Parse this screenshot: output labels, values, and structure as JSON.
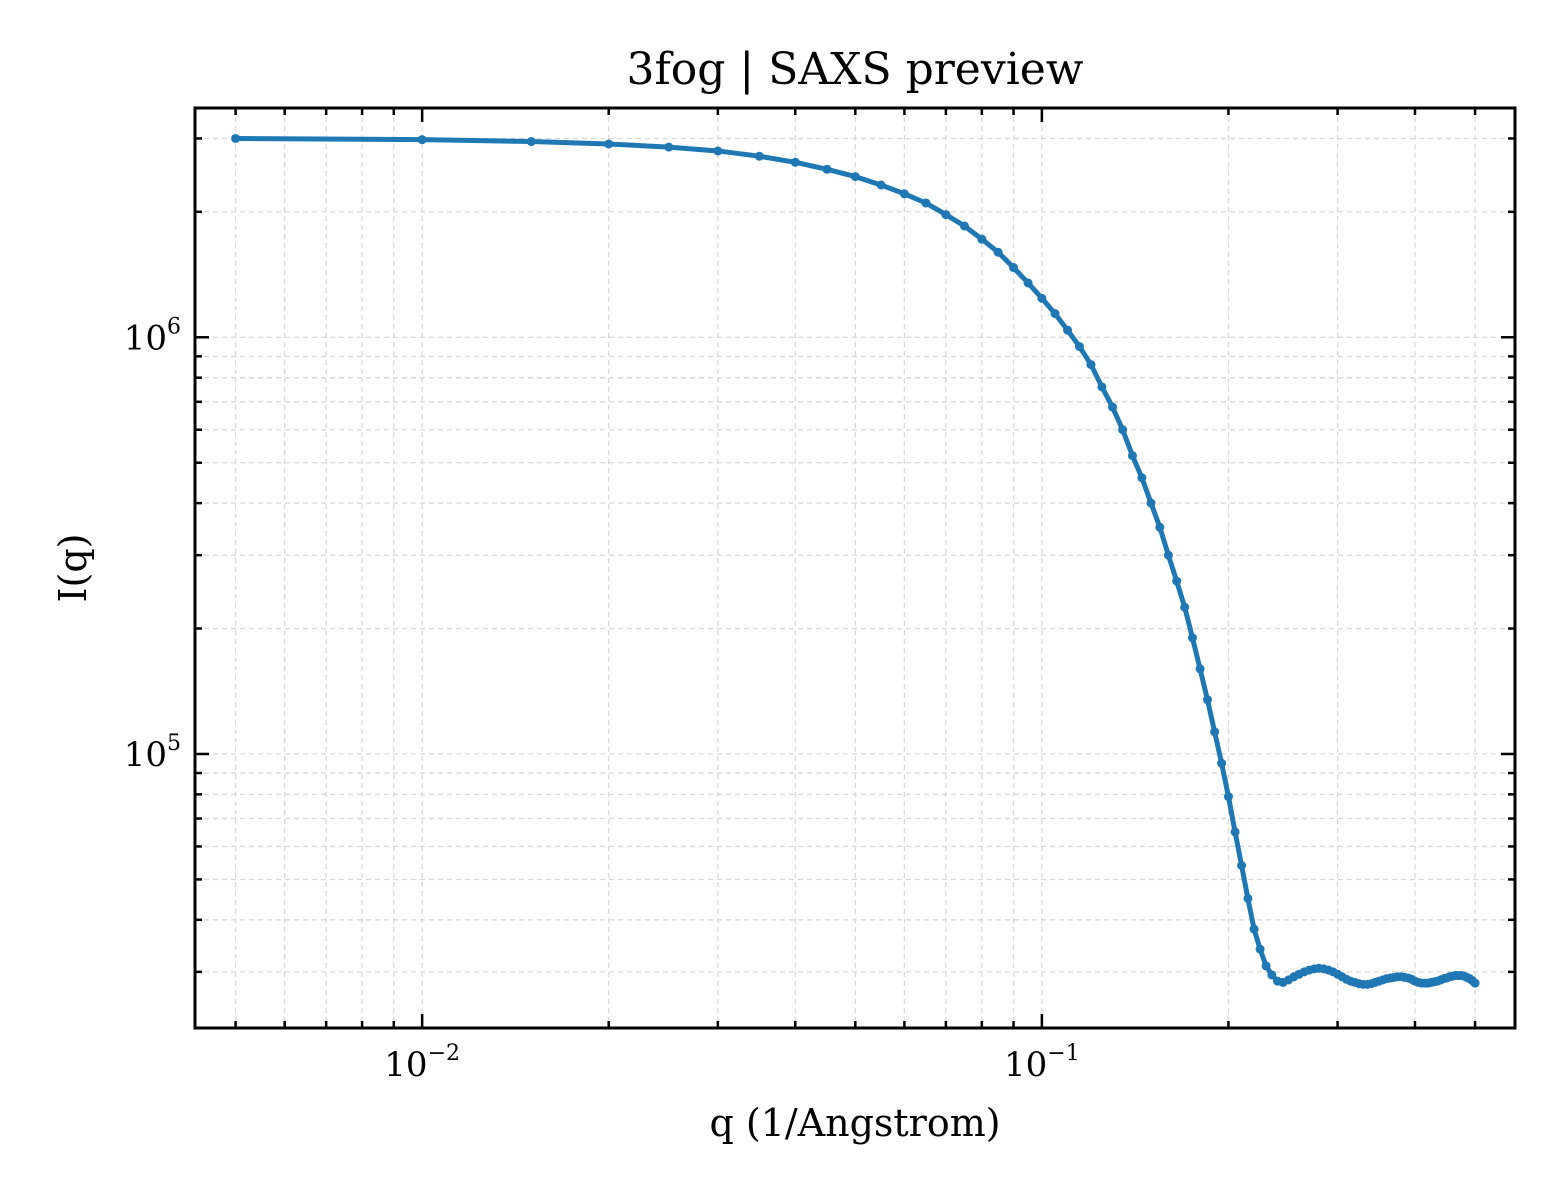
{
  "chart_data": {
    "type": "line",
    "title": "3fog | SAXS preview",
    "xlabel": "q (1/Angstrom)",
    "ylabel": "I(q)",
    "x_scale": "log",
    "y_scale": "log",
    "xlim": [
      0.0043,
      0.58
    ],
    "ylim": [
      22000,
      3550000
    ],
    "grid": true,
    "x_major_ticks": [
      {
        "value": 0.01,
        "base": "10",
        "exp": "−2"
      },
      {
        "value": 0.1,
        "base": "10",
        "exp": "−1"
      }
    ],
    "y_major_ticks": [
      {
        "value": 100000,
        "base": "10",
        "exp": "5"
      },
      {
        "value": 1000000,
        "base": "10",
        "exp": "6"
      }
    ],
    "colors": {
      "series": "#1f77b4",
      "grid": "#d9d9d9",
      "axes": "#000000"
    },
    "series": [
      {
        "x": [
          0.005,
          0.01,
          0.015,
          0.02,
          0.025,
          0.03,
          0.035,
          0.04,
          0.045,
          0.05,
          0.055,
          0.06,
          0.065,
          0.07,
          0.075,
          0.08,
          0.085,
          0.09,
          0.095,
          0.1,
          0.105,
          0.11,
          0.115,
          0.12,
          0.125,
          0.13,
          0.135,
          0.14,
          0.145,
          0.15,
          0.155,
          0.16,
          0.165,
          0.17,
          0.175,
          0.18,
          0.185,
          0.19,
          0.195,
          0.2,
          0.205,
          0.21,
          0.215,
          0.22,
          0.225,
          0.23,
          0.235,
          0.24,
          0.245,
          0.25,
          0.255,
          0.26,
          0.265,
          0.27,
          0.275,
          0.28,
          0.285,
          0.29,
          0.295,
          0.3,
          0.305,
          0.31,
          0.315,
          0.32,
          0.325,
          0.33,
          0.335,
          0.34,
          0.345,
          0.35,
          0.355,
          0.36,
          0.365,
          0.37,
          0.375,
          0.38,
          0.385,
          0.39,
          0.395,
          0.4,
          0.405,
          0.41,
          0.415,
          0.42,
          0.425,
          0.43,
          0.435,
          0.44,
          0.445,
          0.45,
          0.455,
          0.46,
          0.465,
          0.47,
          0.475,
          0.48,
          0.485,
          0.49,
          0.495,
          0.5
        ],
        "y": [
          3000000,
          2980000,
          2950000,
          2910000,
          2860000,
          2800000,
          2720000,
          2630000,
          2530000,
          2430000,
          2320000,
          2210000,
          2100000,
          1970000,
          1850000,
          1720000,
          1600000,
          1470000,
          1350000,
          1240000,
          1140000,
          1040000,
          950000,
          860000,
          760000,
          680000,
          600000,
          520000,
          460000,
          400000,
          350000,
          300000,
          260000,
          225000,
          190000,
          160000,
          135000,
          113000,
          95000,
          79000,
          65000,
          54000,
          45000,
          38000,
          34000,
          31000,
          29500,
          28500,
          28300,
          28700,
          29200,
          29600,
          30000,
          30300,
          30500,
          30600,
          30500,
          30300,
          30000,
          29600,
          29200,
          28800,
          28500,
          28300,
          28100,
          28000,
          28000,
          28100,
          28300,
          28500,
          28700,
          28900,
          29000,
          29100,
          29200,
          29200,
          29100,
          29000,
          28800,
          28500,
          28300,
          28200,
          28200,
          28200,
          28300,
          28400,
          28500,
          28700,
          28900,
          29000,
          29200,
          29300,
          29400,
          29400,
          29400,
          29300,
          29100,
          28900,
          28600,
          28200
        ]
      }
    ]
  }
}
